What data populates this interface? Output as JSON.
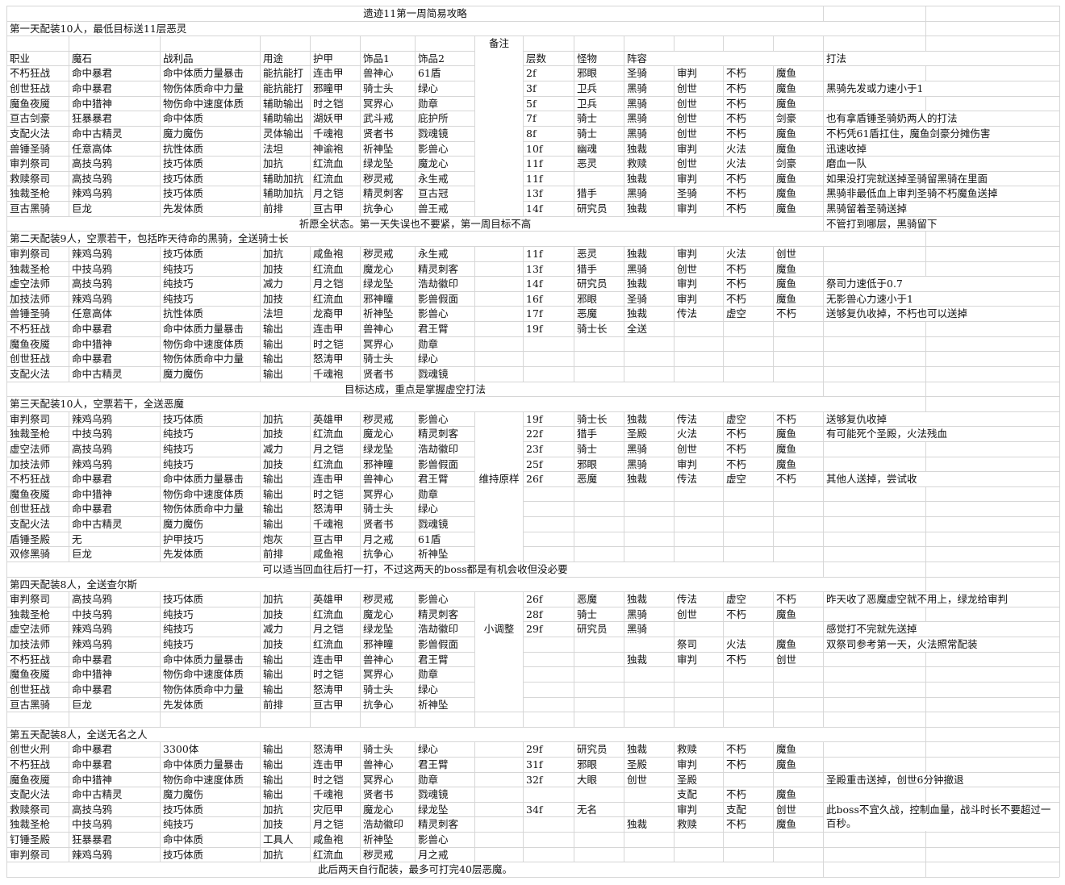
{
  "title": "遗迹11第一周简易攻略",
  "header": {
    "note": "备注",
    "columns": [
      "职业",
      "魔石",
      "战利品",
      "用途",
      "护甲",
      "饰品1",
      "饰品2"
    ],
    "floor": "层数",
    "monster": "怪物",
    "lineup": "阵容",
    "tactic": "打法"
  },
  "days": [
    {
      "heading": "第一天配装10人，最低目标送11层恶灵",
      "rows": [
        {
          "build": [
            "不朽狂战",
            "命中暴君",
            "命中体质力量暴击",
            "能抗能打",
            "连击甲",
            "兽神心",
            "61盾"
          ],
          "plan": [
            "2f",
            "邪眼",
            "圣骑",
            "审判",
            "不朽",
            "魔鱼"
          ]
        },
        {
          "build": [
            "创世狂战",
            "命中暴君",
            "物伤体质命中力量",
            "能抗能打",
            "邪瞳甲",
            "骑士头",
            "绿心"
          ],
          "plan": [
            "3f",
            "卫兵",
            "黑骑",
            "创世",
            "不朽",
            "魔鱼"
          ],
          "tactic": "黑骑先发或力速小于1"
        },
        {
          "build": [
            "魔鱼夜魇",
            "命中猎神",
            "物伤命中速度体质",
            "辅助输出",
            "时之铠",
            "冥界心",
            "勋章"
          ],
          "plan": [
            "5f",
            "卫兵",
            "黑骑",
            "创世",
            "不朽",
            "魔鱼"
          ]
        },
        {
          "build": [
            "亘古剑豪",
            "狂暴暴君",
            "命中体质",
            "辅助输出",
            "湖妖甲",
            "武斗戒",
            "庇护所"
          ],
          "plan": [
            "7f",
            "骑士",
            "黑骑",
            "创世",
            "不朽",
            "剑豪"
          ],
          "tactic": "也有拿盾锤圣骑奶两人的打法"
        },
        {
          "build": [
            "支配火法",
            "命中古精灵",
            "魔力魔伤",
            "灵体输出",
            "千魂袍",
            "贤者书",
            "戮魂镜"
          ],
          "plan": [
            "8f",
            "骑士",
            "黑骑",
            "创世",
            "不朽",
            "魔鱼"
          ],
          "tactic": "不朽凭61盾扛住，魔鱼剑豪分摊伤害"
        },
        {
          "build": [
            "兽锤圣骑",
            "任意高体",
            "抗性体质",
            "法坦",
            "神谕袍",
            "祈神坠",
            "影兽心"
          ],
          "plan": [
            "10f",
            "幽魂",
            "独裁",
            "审判",
            "火法",
            "魔鱼"
          ],
          "tactic": "迅速收掉"
        },
        {
          "build": [
            "审判祭司",
            "高技乌鸦",
            "技巧体质",
            "加抗",
            "红流血",
            "绿龙坠",
            "魔龙心"
          ],
          "plan": [
            "11f",
            "恶灵",
            "救赎",
            "创世",
            "火法",
            "剑豪"
          ],
          "tactic": "磨血一队"
        },
        {
          "build": [
            "救赎祭司",
            "高技乌鸦",
            "技巧体质",
            "辅助加抗",
            "红流血",
            "秽灵戒",
            "永生戒"
          ],
          "plan": [
            "11f",
            null,
            "独裁",
            "审判",
            "不朽",
            "魔鱼"
          ],
          "tactic": "如果没打完就送掉圣骑留黑骑在里面"
        },
        {
          "build": [
            "独裁圣枪",
            "辣鸡乌鸦",
            "技巧体质",
            "辅助加抗",
            "月之铠",
            "精灵刺客",
            "亘古冠"
          ],
          "plan": [
            "13f",
            "猎手",
            "黑骑",
            "圣骑",
            "不朽",
            "魔鱼"
          ],
          "tactic": "黑骑非最低血上审判圣骑不朽魔鱼送掉"
        },
        {
          "build": [
            "亘古黑骑",
            "巨龙",
            "先发体质",
            "前排",
            "亘古甲",
            "抗争心",
            "兽王戒"
          ],
          "plan": [
            "14f",
            "研究员",
            "独裁",
            "审判",
            "不朽",
            "魔鱼"
          ],
          "tactic": "黑骑留着圣骑送掉"
        }
      ],
      "footer": "祈愿全状态。第一天失误也不要紧，第一周目标不高",
      "footer_tactic": "不管打到哪层，黑骑留下"
    },
    {
      "heading": "第二天配装9人，空票若干，包括昨天待命的黑骑，全送骑士长",
      "rows": [
        {
          "build": [
            "审判祭司",
            "辣鸡乌鸦",
            "技巧体质",
            "加抗",
            "咸鱼袍",
            "秽灵戒",
            "永生戒"
          ],
          "plan": [
            "11f",
            "恶灵",
            "独裁",
            "审判",
            "火法",
            "创世"
          ]
        },
        {
          "build": [
            "独裁圣枪",
            "中技乌鸦",
            "纯技巧",
            "加技",
            "红流血",
            "魔龙心",
            "精灵刺客"
          ],
          "plan": [
            "13f",
            "猎手",
            "黑骑",
            "创世",
            "不朽",
            "魔鱼"
          ]
        },
        {
          "build": [
            "虚空法师",
            "高技乌鸦",
            "纯技巧",
            "减力",
            "月之铠",
            "绿龙坠",
            "浩劫徽印"
          ],
          "plan": [
            "14f",
            "研究员",
            "独裁",
            "审判",
            "不朽",
            "魔鱼"
          ],
          "tactic": "祭司力速低于0.7"
        },
        {
          "build": [
            "加技法师",
            "辣鸡乌鸦",
            "纯技巧",
            "加技",
            "红流血",
            "邪神瞳",
            "影兽假面"
          ],
          "plan": [
            "16f",
            "邪眼",
            "圣骑",
            "审判",
            "不朽",
            "魔鱼"
          ],
          "tactic": "无影兽心力速小于1"
        },
        {
          "build": [
            "兽锤圣骑",
            "任意高体",
            "抗性体质",
            "法坦",
            "龙裔甲",
            "祈神坠",
            "影兽心"
          ],
          "plan": [
            "17f",
            "恶魔",
            "独裁",
            "传法",
            "虚空",
            "不朽"
          ],
          "tactic": "送够复仇收掉，不朽也可以送掉"
        },
        {
          "build": [
            "不朽狂战",
            "命中暴君",
            "命中体质力量暴击",
            "输出",
            "连击甲",
            "兽神心",
            "君王臂"
          ],
          "plan": [
            "19f",
            "骑士长",
            "全送",
            null,
            null,
            null
          ]
        },
        {
          "build": [
            "魔鱼夜魇",
            "命中猎神",
            "物伤命中速度体质",
            "输出",
            "时之铠",
            "冥界心",
            "勋章"
          ]
        },
        {
          "build": [
            "创世狂战",
            "命中暴君",
            "物伤体质命中力量",
            "输出",
            "怒涛甲",
            "骑士头",
            "绿心"
          ]
        },
        {
          "build": [
            "支配火法",
            "命中古精灵",
            "魔力魔伤",
            "输出",
            "千魂袍",
            "贤者书",
            "戮魂镜"
          ]
        }
      ],
      "footer": "目标达成，重点是掌握虚空打法"
    },
    {
      "heading": "第三天配装10人，空票若干，全送恶魔",
      "rows": [
        {
          "build": [
            "审判祭司",
            "辣鸡乌鸦",
            "技巧体质",
            "加抗",
            "英雄甲",
            "秽灵戒",
            "影兽心"
          ],
          "plan": [
            "19f",
            "骑士长",
            "独裁",
            "传法",
            "虚空",
            "不朽"
          ],
          "tactic": "送够复仇收掉"
        },
        {
          "build": [
            "独裁圣枪",
            "中技乌鸦",
            "纯技巧",
            "加技",
            "红流血",
            "魔龙心",
            "精灵刺客"
          ],
          "plan": [
            "22f",
            "猎手",
            "圣殿",
            "火法",
            "不朽",
            "魔鱼"
          ],
          "tactic": "有可能死个圣殿，火法残血"
        },
        {
          "build": [
            "虚空法师",
            "高技乌鸦",
            "纯技巧",
            "减力",
            "月之铠",
            "绿龙坠",
            "浩劫徽印"
          ],
          "plan": [
            "23f",
            "骑士",
            "黑骑",
            "创世",
            "不朽",
            "魔鱼"
          ]
        },
        {
          "build": [
            "加技法师",
            "辣鸡乌鸦",
            "纯技巧",
            "加技",
            "红流血",
            "邪神瞳",
            "影兽假面"
          ],
          "plan": [
            "25f",
            "邪眼",
            "黑骑",
            "审判",
            "不朽",
            "魔鱼"
          ]
        },
        {
          "build": [
            "不朽狂战",
            "命中暴君",
            "命中体质力量暴击",
            "输出",
            "连击甲",
            "兽神心",
            "君王臂"
          ],
          "note": "维持原样",
          "plan": [
            "26f",
            "恶魔",
            "独裁",
            "传法",
            "虚空",
            "不朽"
          ],
          "tactic": "其他人送掉，尝试收"
        },
        {
          "build": [
            "魔鱼夜魇",
            "命中猎神",
            "物伤命中速度体质",
            "输出",
            "时之铠",
            "冥界心",
            "勋章"
          ]
        },
        {
          "build": [
            "创世狂战",
            "命中暴君",
            "物伤体质命中力量",
            "输出",
            "怒涛甲",
            "骑士头",
            "绿心"
          ]
        },
        {
          "build": [
            "支配火法",
            "命中古精灵",
            "魔力魔伤",
            "输出",
            "千魂袍",
            "贤者书",
            "戮魂镜"
          ]
        },
        {
          "build": [
            "盾锤圣殿",
            "无",
            "护甲技巧",
            "炮灰",
            "亘古甲",
            "月之戒",
            "61盾"
          ]
        },
        {
          "build": [
            "双修黑骑",
            "巨龙",
            "先发体质",
            "前排",
            "咸鱼袍",
            "抗争心",
            "祈神坠"
          ]
        }
      ],
      "footer": "可以适当回血往后打一打，不过这两天的boss都是有机会收但没必要"
    },
    {
      "heading": "第四天配装8人，全送查尔斯",
      "rows": [
        {
          "build": [
            "审判祭司",
            "高技乌鸦",
            "技巧体质",
            "加抗",
            "英雄甲",
            "秽灵戒",
            "影兽心"
          ],
          "plan": [
            "26f",
            "恶魔",
            "独裁",
            "传法",
            "虚空",
            "不朽"
          ],
          "tactic": "昨天收了恶魔虚空就不用上，绿龙给审判"
        },
        {
          "build": [
            "独裁圣枪",
            "中技乌鸦",
            "纯技巧",
            "加技",
            "红流血",
            "魔龙心",
            "精灵刺客"
          ],
          "plan": [
            "28f",
            "骑士",
            "黑骑",
            "创世",
            "不朽",
            "魔鱼"
          ]
        },
        {
          "build": [
            "虚空法师",
            "辣鸡乌鸦",
            "纯技巧",
            "减力",
            "月之铠",
            "绿龙坠",
            "浩劫徽印"
          ],
          "note": "小调整",
          "plan": [
            "29f",
            "研究员",
            "黑骑",
            null,
            null,
            null
          ],
          "tactic": "感觉打不完就先送掉"
        },
        {
          "build": [
            "加技法师",
            "辣鸡乌鸦",
            "纯技巧",
            "加技",
            "红流血",
            "邪神瞳",
            "影兽假面"
          ],
          "plan": [
            null,
            null,
            null,
            "祭司",
            "火法",
            "魔鱼"
          ],
          "tactic": "双祭司参考第一天，火法照常配装"
        },
        {
          "build": [
            "不朽狂战",
            "命中暴君",
            "命中体质力量暴击",
            "输出",
            "连击甲",
            "兽神心",
            "君王臂"
          ],
          "plan": [
            null,
            null,
            "独裁",
            "审判",
            "不朽",
            "创世"
          ]
        },
        {
          "build": [
            "魔鱼夜魇",
            "命中猎神",
            "物伤命中速度体质",
            "输出",
            "时之铠",
            "冥界心",
            "勋章"
          ]
        },
        {
          "build": [
            "创世狂战",
            "命中暴君",
            "物伤体质命中力量",
            "输出",
            "怒涛甲",
            "骑士头",
            "绿心"
          ]
        },
        {
          "build": [
            "亘古黑骑",
            "巨龙",
            "先发体质",
            "前排",
            "亘古甲",
            "抗争心",
            "祈神坠"
          ]
        }
      ]
    },
    {
      "heading": "第五天配装8人，全送无名之人",
      "rows": [
        {
          "build": [
            "创世火刑",
            "命中暴君",
            "3300体",
            "输出",
            "怒涛甲",
            "骑士头",
            "绿心"
          ],
          "plan": [
            "29f",
            "研究员",
            "独裁",
            "救赎",
            "不朽",
            "魔鱼"
          ]
        },
        {
          "build": [
            "不朽狂战",
            "命中暴君",
            "命中体质力量暴击",
            "输出",
            "连击甲",
            "兽神心",
            "君王臂"
          ],
          "plan": [
            "31f",
            "邪眼",
            "圣殿",
            "审判",
            "不朽",
            "魔鱼"
          ]
        },
        {
          "build": [
            "魔鱼夜魇",
            "命中猎神",
            "物伤命中速度体质",
            "输出",
            "时之铠",
            "冥界心",
            "勋章"
          ],
          "plan": [
            "32f",
            "大眼",
            "创世",
            "圣殿",
            null,
            null
          ],
          "tactic": "圣殿重击送掉，创世6分钟撤退"
        },
        {
          "build": [
            "支配火法",
            "命中古精灵",
            "魔力魔伤",
            "输出",
            "千魂袍",
            "贤者书",
            "戮魂镜"
          ],
          "plan": [
            null,
            null,
            null,
            "支配",
            "不朽",
            "魔鱼"
          ]
        },
        {
          "build": [
            "救赎祭司",
            "高技乌鸦",
            "技巧体质",
            "加抗",
            "灾厄甲",
            "魔龙心",
            "绿龙坠"
          ],
          "plan": [
            "34f",
            "无名",
            null,
            "审判",
            "支配",
            "创世"
          ],
          "tactic": "此boss不宜久战，控制血量，战斗时长不要超过一百秒。"
        },
        {
          "build": [
            "独裁圣枪",
            "中技乌鸦",
            "纯技巧",
            "加技",
            "月之铠",
            "浩劫徽印",
            "精灵刺客"
          ],
          "plan": [
            null,
            null,
            "独裁",
            "救赎",
            "不朽",
            "魔鱼"
          ]
        },
        {
          "build": [
            "钉锤圣殿",
            "狂暴暴君",
            "命中体质",
            "工具人",
            "咸鱼袍",
            "祈神坠",
            "影兽心"
          ]
        },
        {
          "build": [
            "审判祭司",
            "辣鸡乌鸦",
            "技巧体质",
            "加抗",
            "红流血",
            "秽灵戒",
            "月之戒"
          ]
        }
      ],
      "footer": "此后两天自行配装，最多可打完40层恶魔。"
    }
  ]
}
